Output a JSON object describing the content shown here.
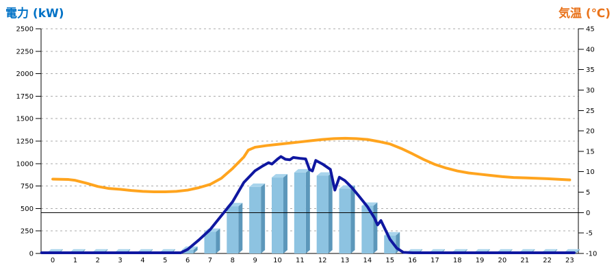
{
  "titles": {
    "left": "電力 (kW)",
    "right": "気温 (℃)"
  },
  "chart_data": {
    "type": "bar",
    "title": "",
    "xlabel": "",
    "ylabel_left": "電力 (kW)",
    "ylabel_right": "気温 (℃)",
    "grid": "horizontal-dashed",
    "legend": "none",
    "x_hours": [
      0,
      1,
      2,
      3,
      4,
      5,
      6,
      7,
      8,
      9,
      10,
      11,
      12,
      13,
      14,
      15,
      16,
      17,
      18,
      19,
      20,
      21,
      22,
      23
    ],
    "x_tick_labels": [
      "0",
      "1",
      "2",
      "3",
      "4",
      "5",
      "6",
      "7",
      "8",
      "9",
      "10",
      "11",
      "12",
      "13",
      "14",
      "15",
      "16",
      "17",
      "18",
      "19",
      "20",
      "21",
      "22",
      "23"
    ],
    "axis_left": {
      "min": 0,
      "max": 2500,
      "step": 250,
      "tick_labels": [
        "0",
        "250",
        "500",
        "750",
        "1000",
        "1250",
        "1500",
        "1750",
        "2000",
        "2250",
        "2500"
      ]
    },
    "axis_right": {
      "min": -10,
      "max": 45,
      "step": 5,
      "tick_labels": [
        "-10",
        "-5",
        "0",
        "5",
        "10",
        "15",
        "20",
        "25",
        "30",
        "35",
        "40",
        "45"
      ]
    },
    "zero_line_temp_c": 0,
    "bars_kw": [
      10,
      10,
      10,
      10,
      10,
      10,
      40,
      240,
      525,
      740,
      845,
      900,
      865,
      720,
      530,
      200,
      10,
      10,
      10,
      10,
      10,
      10,
      10,
      10
    ],
    "power_line_kw": [
      [
        -0.5,
        8
      ],
      [
        5.7,
        8
      ],
      [
        6,
        45
      ],
      [
        6.5,
        150
      ],
      [
        7,
        265
      ],
      [
        7.5,
        420
      ],
      [
        8,
        575
      ],
      [
        8.5,
        790
      ],
      [
        9,
        920
      ],
      [
        9.35,
        975
      ],
      [
        9.6,
        1010
      ],
      [
        9.75,
        995
      ],
      [
        10,
        1050
      ],
      [
        10.15,
        1078
      ],
      [
        10.35,
        1048
      ],
      [
        10.55,
        1042
      ],
      [
        10.7,
        1068
      ],
      [
        11,
        1058
      ],
      [
        11.25,
        1052
      ],
      [
        11.42,
        935
      ],
      [
        11.55,
        918
      ],
      [
        11.7,
        1035
      ],
      [
        12,
        995
      ],
      [
        12.35,
        935
      ],
      [
        12.55,
        705
      ],
      [
        12.75,
        848
      ],
      [
        13,
        810
      ],
      [
        13.3,
        735
      ],
      [
        13.6,
        645
      ],
      [
        14,
        520
      ],
      [
        14.3,
        400
      ],
      [
        14.45,
        318
      ],
      [
        14.6,
        366
      ],
      [
        15,
        158
      ],
      [
        15.3,
        60
      ],
      [
        15.6,
        12
      ],
      [
        16,
        8
      ],
      [
        23.2,
        8
      ]
    ],
    "temp_line_c": [
      [
        0,
        8.2
      ],
      [
        0.7,
        8.1
      ],
      [
        1,
        7.9
      ],
      [
        1.5,
        7.2
      ],
      [
        2,
        6.4
      ],
      [
        2.5,
        5.9
      ],
      [
        3,
        5.7
      ],
      [
        3.5,
        5.4
      ],
      [
        4,
        5.2
      ],
      [
        4.5,
        5.1
      ],
      [
        5,
        5.1
      ],
      [
        5.5,
        5.2
      ],
      [
        6,
        5.5
      ],
      [
        6.5,
        6.1
      ],
      [
        7,
        6.9
      ],
      [
        7.5,
        8.4
      ],
      [
        8,
        10.8
      ],
      [
        8.5,
        13.6
      ],
      [
        8.7,
        15.3
      ],
      [
        9,
        16.0
      ],
      [
        9.5,
        16.4
      ],
      [
        10,
        16.7
      ],
      [
        10.5,
        17.0
      ],
      [
        11,
        17.3
      ],
      [
        11.5,
        17.6
      ],
      [
        12,
        17.9
      ],
      [
        12.5,
        18.1
      ],
      [
        13,
        18.2
      ],
      [
        13.5,
        18.1
      ],
      [
        14,
        17.9
      ],
      [
        14.5,
        17.4
      ],
      [
        15,
        16.8
      ],
      [
        15.5,
        15.7
      ],
      [
        16,
        14.4
      ],
      [
        16.5,
        13.0
      ],
      [
        17,
        11.8
      ],
      [
        17.5,
        10.9
      ],
      [
        18,
        10.2
      ],
      [
        18.5,
        9.7
      ],
      [
        19,
        9.4
      ],
      [
        19.5,
        9.1
      ],
      [
        20,
        8.8
      ],
      [
        20.5,
        8.6
      ],
      [
        21,
        8.5
      ],
      [
        21.5,
        8.4
      ],
      [
        22,
        8.3
      ],
      [
        22.5,
        8.15
      ],
      [
        23,
        8.0
      ]
    ],
    "colors": {
      "bar_front": "#8DC3E1",
      "bar_top": "#A8D4EC",
      "bar_side": "#5C97BA",
      "power_line": "#0F17A0",
      "temp_line": "#FFA41E",
      "grid": "#AAAAAA",
      "axis": "#000000",
      "zero_line": "#000000",
      "title_left": "#0072C6",
      "title_right": "#E9731B"
    }
  }
}
